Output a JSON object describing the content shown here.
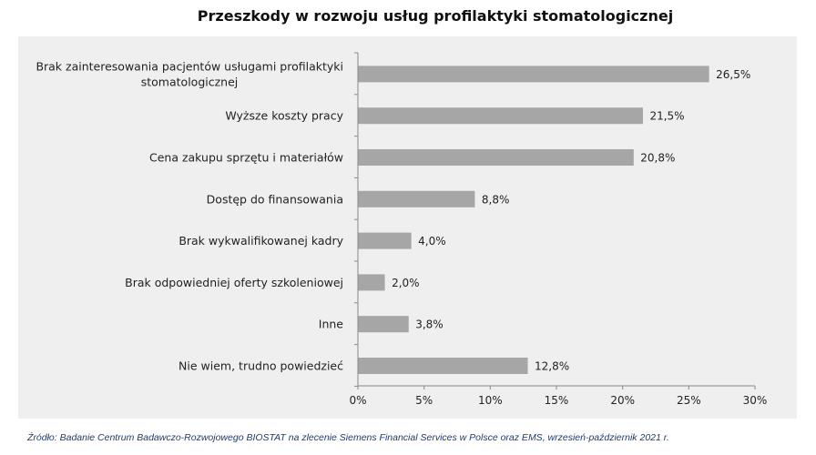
{
  "chart_data": {
    "type": "bar",
    "orientation": "horizontal",
    "title": "Przeszkody w rozwoju usług profilaktyki stomatologicznej",
    "categories": [
      [
        "Brak zainteresowania pacjentów usługami profilaktyki",
        "stomatologicznej"
      ],
      [
        "Wyższe koszty pracy"
      ],
      [
        "Cena zakupu sprzętu i materiałów"
      ],
      [
        "Dostęp do finansowania"
      ],
      [
        "Brak wykwalifikowanej kadry"
      ],
      [
        "Brak odpowiedniej  oferty szkoleniowej"
      ],
      [
        "Inne"
      ],
      [
        "Nie wiem, trudno powiedzieć"
      ]
    ],
    "values": [
      26.5,
      21.5,
      20.8,
      8.8,
      4.0,
      2.0,
      3.8,
      12.8
    ],
    "value_labels": [
      "26,5%",
      "21,5%",
      "20,8%",
      "8,8%",
      "4,0%",
      "2,0%",
      "3,8%",
      "12,8%"
    ],
    "xlim": [
      0,
      30
    ],
    "x_ticks": [
      0,
      5,
      10,
      15,
      20,
      25,
      30
    ],
    "x_tick_labels": [
      "0%",
      "5%",
      "10%",
      "15%",
      "20%",
      "25%",
      "30%"
    ],
    "xlabel": "",
    "ylabel": "",
    "grid": false,
    "legend": "none",
    "bar_color": "#a6a6a6",
    "plot_background": "#efefef"
  },
  "source": "Źródło: Badanie Centrum Badawczo-Rozwojowego BIOSTAT na zlecenie Siemens Financial Services w Polsce oraz EMS, wrzesień-październik 2021 r."
}
